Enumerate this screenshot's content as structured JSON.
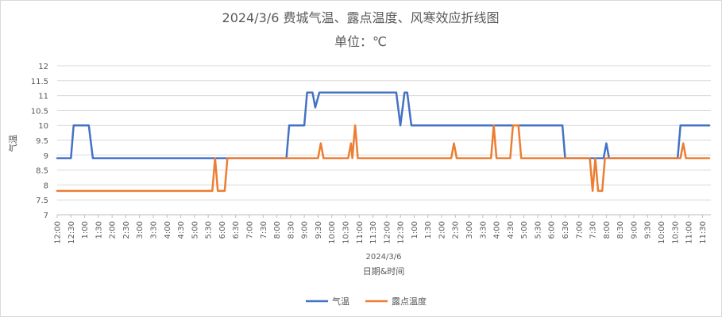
{
  "chart_data": {
    "type": "line",
    "title": "2024/3/6 费城气温、露点温度、风寒效应折线图",
    "subtitle": "单位：℃",
    "xlabel": "日期&时间",
    "ylabel": "气温",
    "date_label": "2024/3/6",
    "ylim": [
      7,
      12
    ],
    "yticks": [
      "7",
      "7.5",
      "8",
      "8.5",
      "9",
      "9.5",
      "10",
      "10.5",
      "11",
      "11.5",
      "12"
    ],
    "xlim": [
      0,
      47.5
    ],
    "xtick_labels": [
      "12:00",
      "12:30",
      "1:00",
      "1:30",
      "2:00",
      "2:30",
      "3:00",
      "3:30",
      "4:00",
      "4:30",
      "5:00",
      "5:30",
      "6:00",
      "6:30",
      "7:00",
      "7:30",
      "8:00",
      "8:30",
      "9:00",
      "9:30",
      "10:00",
      "10:30",
      "11:00",
      "11:30",
      "12:00",
      "12:30",
      "1:00",
      "1:30",
      "2:00",
      "2:30",
      "3:00",
      "3:30",
      "4:00",
      "4:30",
      "5:00",
      "5:30",
      "6:00",
      "6:30",
      "7:00",
      "7:30",
      "8:00",
      "8:30",
      "9:00",
      "9:30",
      "10:00",
      "10:30",
      "11:00",
      "11:30"
    ],
    "grid": true,
    "legend_position": "bottom",
    "series": [
      {
        "name": "气温",
        "color": "#4472C4",
        "points": [
          [
            0,
            8.9
          ],
          [
            1,
            8.9
          ],
          [
            1.2,
            10
          ],
          [
            2.3,
            10
          ],
          [
            2.6,
            8.9
          ],
          [
            16.7,
            8.9
          ],
          [
            16.9,
            10
          ],
          [
            18,
            10
          ],
          [
            18.2,
            11.1
          ],
          [
            18.6,
            11.1
          ],
          [
            18.8,
            10.6
          ],
          [
            19.1,
            11.1
          ],
          [
            24.7,
            11.1
          ],
          [
            25,
            10
          ],
          [
            25.3,
            11.1
          ],
          [
            25.5,
            11.1
          ],
          [
            25.8,
            10
          ],
          [
            36.8,
            10
          ],
          [
            37,
            8.9
          ],
          [
            39.8,
            8.9
          ],
          [
            40,
            9.4
          ],
          [
            40.2,
            8.9
          ],
          [
            45.2,
            8.9
          ],
          [
            45.4,
            10
          ],
          [
            47.5,
            10
          ]
        ]
      },
      {
        "name": "露点温度",
        "color": "#ED7D31",
        "points": [
          [
            0,
            7.8
          ],
          [
            11.3,
            7.8
          ],
          [
            11.5,
            8.9
          ],
          [
            11.7,
            7.8
          ],
          [
            12.2,
            7.8
          ],
          [
            12.4,
            8.9
          ],
          [
            19,
            8.9
          ],
          [
            19.2,
            9.4
          ],
          [
            19.4,
            8.9
          ],
          [
            21.2,
            8.9
          ],
          [
            21.4,
            9.4
          ],
          [
            21.5,
            8.9
          ],
          [
            21.7,
            10
          ],
          [
            21.9,
            8.9
          ],
          [
            28.7,
            8.9
          ],
          [
            28.9,
            9.4
          ],
          [
            29.1,
            8.9
          ],
          [
            31.6,
            8.9
          ],
          [
            31.8,
            10
          ],
          [
            32,
            8.9
          ],
          [
            33,
            8.9
          ],
          [
            33.2,
            10
          ],
          [
            33.6,
            10
          ],
          [
            33.8,
            8.9
          ],
          [
            38.8,
            8.9
          ],
          [
            39,
            7.8
          ],
          [
            39.2,
            8.9
          ],
          [
            39.4,
            7.8
          ],
          [
            39.7,
            7.8
          ],
          [
            39.9,
            8.9
          ],
          [
            45.4,
            8.9
          ],
          [
            45.6,
            9.4
          ],
          [
            45.8,
            8.9
          ],
          [
            47.5,
            8.9
          ]
        ]
      }
    ]
  }
}
